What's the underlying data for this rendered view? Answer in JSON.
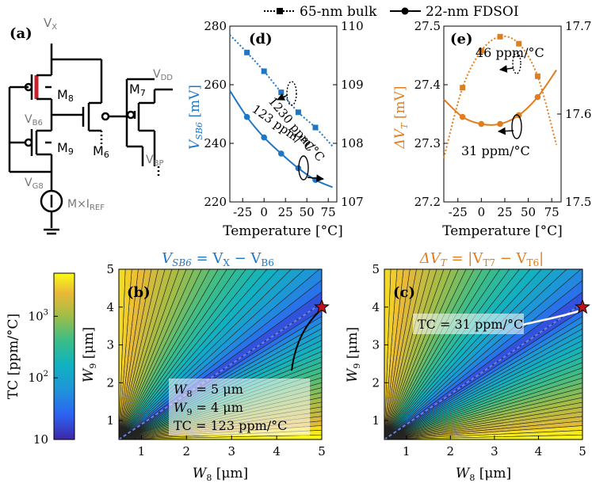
{
  "legend": {
    "bulk": "65-nm bulk",
    "fdsoi": "22-nm FDSOI"
  },
  "circuit": {
    "label": "(a)",
    "vx": "V",
    "vx_sub": "X",
    "m8": "M",
    "m8_sub": "8",
    "m9": "M",
    "m9_sub": "9",
    "m7": "M",
    "m7_sub": "7",
    "m6": "M",
    "m6_sub": "6",
    "vb6": "V",
    "vb6_sub": "B6",
    "vdd": "V",
    "vdd_sub": "DD",
    "vbp": "V",
    "vbp_sub": "BP",
    "vg8": "V",
    "vg8_sub": "G8",
    "iref": "M×I",
    "iref_sub": "REF"
  },
  "colorbar": {
    "label": "TC [ppm/°C]",
    "ticks": [
      "10",
      "10",
      "10",
      "10"
    ],
    "tick_exp": [
      "",
      "1",
      "2",
      "3"
    ],
    "tick_vals": [
      10,
      100,
      1000
    ],
    "range": [
      10,
      5000
    ]
  },
  "colors": {
    "fdsoi": "#1f77c4",
    "bulk": "#1f77c4",
    "orange": "#e07d1e",
    "star": "#c0101e"
  },
  "chart_data": [
    {
      "id": "d",
      "panel_label": "(d)",
      "type": "line",
      "xlabel": "Temperature [°C]",
      "ylabel": "V",
      "ylabel_sub": "SB6",
      "ylabel_unit": " [mV]",
      "x_ticks": [
        "-25",
        "0",
        "25",
        "50",
        "75"
      ],
      "xlim": [
        -40,
        85
      ],
      "ylim": [
        220,
        280
      ],
      "y_ticks": [
        "220",
        "240",
        "260",
        "280"
      ],
      "y2lim": [
        107,
        110
      ],
      "y2_ticks": [
        "107",
        "108",
        "109",
        "110"
      ],
      "series": [
        {
          "name": "22-nm FDSOI",
          "axis": "left",
          "style": "solid",
          "marker": "circle",
          "x": [
            -40,
            -20,
            0,
            20,
            40,
            60,
            80
          ],
          "y": [
            258,
            249,
            242,
            236.5,
            231.5,
            227.5,
            225
          ]
        },
        {
          "name": "65-nm bulk",
          "axis": "right",
          "style": "dotted",
          "marker": "square",
          "x": [
            -40,
            -20,
            0,
            20,
            40,
            60,
            80
          ],
          "y": [
            109.85,
            109.55,
            109.23,
            108.87,
            108.53,
            108.27,
            107.95
          ]
        }
      ],
      "annotations": [
        {
          "text": "1230 ppm/°C"
        },
        {
          "text": "123 ppm/°C"
        }
      ]
    },
    {
      "id": "e",
      "panel_label": "(e)",
      "type": "line",
      "xlabel": "Temperature [°C]",
      "ylabel": "ΔV",
      "ylabel_sub": "T",
      "ylabel_unit": " [mV]",
      "x_ticks": [
        "-25",
        "0",
        "25",
        "50",
        "75"
      ],
      "xlim": [
        -40,
        85
      ],
      "ylim": [
        27.2,
        27.5
      ],
      "y_ticks": [
        "27.2",
        "27.3",
        "27.4",
        "27.5"
      ],
      "y2lim": [
        17.5,
        17.7
      ],
      "y2_ticks": [
        "17.5",
        "17.6",
        "17.7"
      ],
      "series": [
        {
          "name": "22-nm FDSOI",
          "axis": "left",
          "style": "solid",
          "marker": "circle",
          "x": [
            -40,
            -20,
            0,
            20,
            40,
            60,
            80
          ],
          "y": [
            27.375,
            27.345,
            27.333,
            27.333,
            27.348,
            27.379,
            27.425
          ]
        },
        {
          "name": "65-nm bulk",
          "axis": "right",
          "style": "dotted",
          "marker": "square",
          "x": [
            -40,
            -20,
            0,
            20,
            40,
            60,
            80
          ],
          "y": [
            17.55,
            17.63,
            17.672,
            17.688,
            17.68,
            17.643,
            17.565
          ]
        }
      ],
      "annotations": [
        {
          "text": "46 ppm/°C"
        },
        {
          "text": "31 ppm/°C"
        }
      ]
    },
    {
      "id": "b",
      "panel_label": "(b)",
      "type": "heatmap",
      "title": "V",
      "title_sub": "SB6",
      "title_rest": " = V",
      "title_sub2": "X",
      "title_rest2": " − V",
      "title_sub3": "B6",
      "xlabel": "W",
      "xlabel_sub": "8",
      "xlabel_unit": " [μm]",
      "ylabel": "W",
      "ylabel_sub": "9",
      "ylabel_unit": " [μm]",
      "xlim": [
        0.5,
        5
      ],
      "ylim": [
        0.5,
        5
      ],
      "x_ticks": [
        "1",
        "2",
        "3",
        "4",
        "5"
      ],
      "y_ticks": [
        "1",
        "2",
        "3",
        "4",
        "5"
      ],
      "valley_slope": 0.8,
      "star": {
        "x": 5,
        "y": 4
      },
      "box_lines": [
        "W",
        "W",
        "TC = 123 ppm/°C"
      ],
      "box_subs": [
        "8",
        "9",
        ""
      ],
      "box_vals": [
        " = 5 μm",
        " = 4 μm",
        ""
      ]
    },
    {
      "id": "c",
      "panel_label": "(c)",
      "type": "heatmap",
      "title": "ΔV",
      "title_sub": "T",
      "title_rest": " = |V",
      "title_sub2": "T7",
      "title_rest2": " − V",
      "title_sub3": "T6",
      "title_end": "|",
      "xlabel": "W",
      "xlabel_sub": "8",
      "xlabel_unit": " [μm]",
      "ylabel": "W",
      "ylabel_sub": "9",
      "ylabel_unit": " [μm]",
      "xlim": [
        0.5,
        5
      ],
      "ylim": [
        0.5,
        5
      ],
      "x_ticks": [
        "1",
        "2",
        "3",
        "4",
        "5"
      ],
      "y_ticks": [
        "1",
        "2",
        "3",
        "4",
        "5"
      ],
      "valley_slope": 0.8,
      "star": {
        "x": 5,
        "y": 4
      },
      "box_text": "TC = 31 ppm/°C"
    }
  ]
}
